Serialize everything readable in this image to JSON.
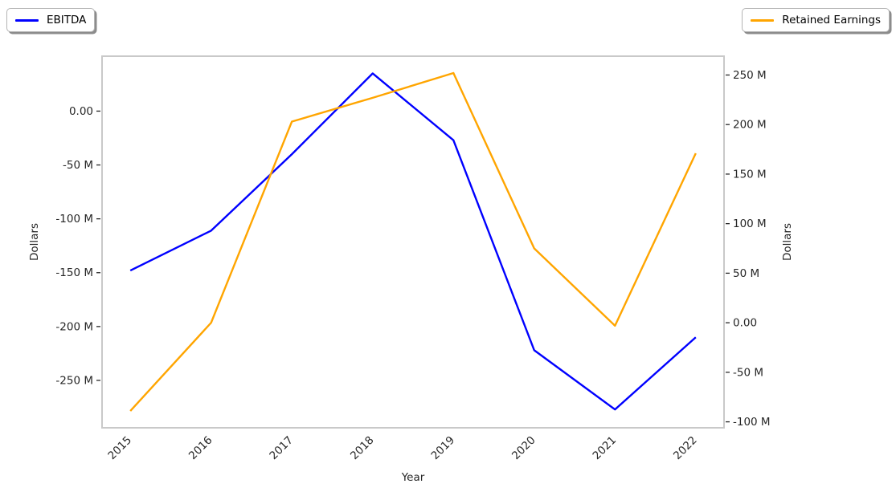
{
  "chart_data": {
    "type": "line",
    "title": "",
    "xlabel": "Year",
    "grid": false,
    "x": [
      2015,
      2016,
      2017,
      2018,
      2019,
      2020,
      2021,
      2022
    ],
    "x_tick_labels": [
      "2015",
      "2016",
      "2017",
      "2018",
      "2019",
      "2020",
      "2021",
      "2022"
    ],
    "xlim": [
      2014.65,
      2022.35
    ],
    "series": [
      {
        "name": "EBITDA",
        "color": "#0000ff",
        "axis": "left",
        "legend_position": "upper left",
        "values_millions": [
          -148,
          -111,
          -40,
          35,
          -27,
          -222,
          -277,
          -210
        ]
      },
      {
        "name": "Retained Earnings",
        "color": "#ffa500",
        "axis": "right",
        "legend_position": "upper right",
        "values_millions": [
          -89,
          0,
          203,
          227,
          252,
          75,
          -3,
          171
        ]
      }
    ],
    "left_axis": {
      "label": "Dollars",
      "ylim_millions": [
        -294,
        51
      ],
      "tick_values_millions": [
        0,
        -50,
        -100,
        -150,
        -200,
        -250
      ],
      "tick_labels": [
        "0.00",
        "-50 M",
        "-100 M",
        "-150 M",
        "-200 M",
        "-250 M"
      ]
    },
    "right_axis": {
      "label": "Dollars",
      "ylim_millions": [
        -106,
        269
      ],
      "tick_values_millions": [
        250,
        200,
        150,
        100,
        50,
        0,
        -50,
        -100
      ],
      "tick_labels": [
        "250 M",
        "200 M",
        "150 M",
        "100 M",
        "50 M",
        "0.00",
        "-50 M",
        "-100 M"
      ]
    }
  },
  "colors": {
    "background": "#ffffff",
    "spine": "#c9c9c9",
    "tick_mark": "#262626",
    "tick_text": "#262626",
    "legend_border": "#b4b4b4",
    "legend_shadow": "#8c8c8c",
    "ebitda_line": "#0000ff",
    "retained_earnings_line": "#ffa500"
  }
}
